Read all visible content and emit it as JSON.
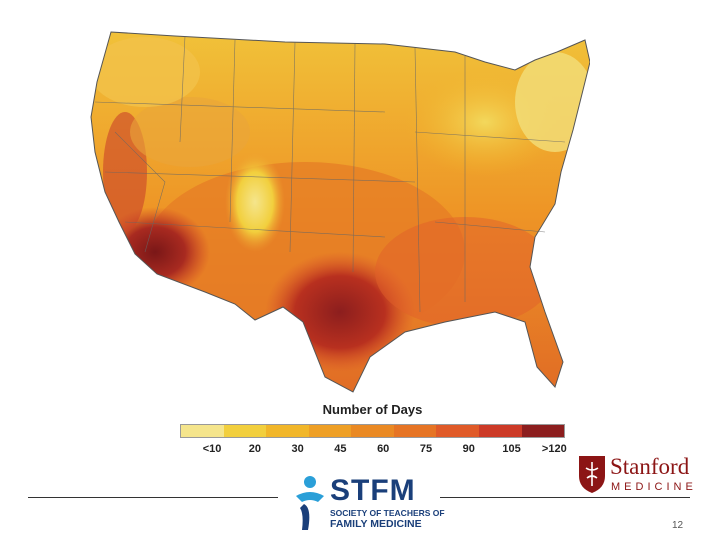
{
  "legend": {
    "title": "Number of Days",
    "labels": [
      "<10",
      "20",
      "30",
      "45",
      "60",
      "75",
      "90",
      "105",
      ">120"
    ],
    "colors": [
      "#f5e58c",
      "#f2cf3d",
      "#f1b629",
      "#ee9f25",
      "#ea8923",
      "#e67424",
      "#e05a28",
      "#cc3a27",
      "#8c1e1e"
    ]
  },
  "logos": {
    "stfm": {
      "name": "STFM",
      "line1": "SOCIETY OF TEACHERS OF",
      "line2": "FAMILY MEDICINE"
    },
    "stanford": {
      "name": "Stanford",
      "subtitle": "MEDICINE"
    }
  },
  "page_number": "12"
}
